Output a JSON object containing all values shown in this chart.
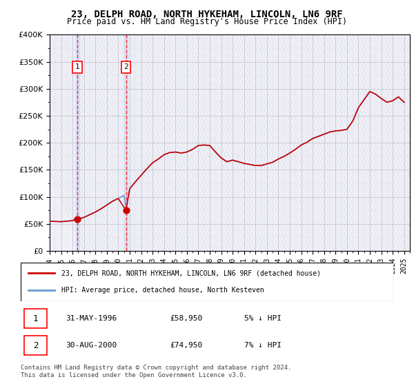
{
  "title": "23, DELPH ROAD, NORTH HYKEHAM, LINCOLN, LN6 9RF",
  "subtitle": "Price paid vs. HM Land Registry's House Price Index (HPI)",
  "ylabel_vals": [
    "£0",
    "£50K",
    "£100K",
    "£150K",
    "£200K",
    "£250K",
    "£300K",
    "£350K",
    "£400K"
  ],
  "ylim": [
    0,
    400000
  ],
  "xlim_start": 1994.0,
  "xlim_end": 2025.5,
  "legend_entry1": "23, DELPH ROAD, NORTH HYKEHAM, LINCOLN, LN6 9RF (detached house)",
  "legend_entry2": "HPI: Average price, detached house, North Kesteven",
  "table_rows": [
    {
      "num": "1",
      "date": "31-MAY-1996",
      "price": "£58,950",
      "hpi": "5% ↓ HPI"
    },
    {
      "num": "2",
      "date": "30-AUG-2000",
      "price": "£74,950",
      "hpi": "7% ↓ HPI"
    }
  ],
  "footnote": "Contains HM Land Registry data © Crown copyright and database right 2024.\nThis data is licensed under the Open Government Licence v3.0.",
  "sale1_x": 1996.42,
  "sale1_y": 58950,
  "sale2_x": 2000.67,
  "sale2_y": 74950,
  "hpi_color": "#6699cc",
  "price_color": "#cc0000",
  "bg_hatch_color": "#e8e8f0",
  "grid_color": "#cccccc",
  "hpi_data_x": [
    1994,
    1994.5,
    1995,
    1995.5,
    1996,
    1996.42,
    1996.5,
    1997,
    1997.5,
    1998,
    1998.5,
    1999,
    1999.5,
    2000,
    2000.5,
    2000.67,
    2001,
    2001.5,
    2002,
    2002.5,
    2003,
    2003.5,
    2004,
    2004.5,
    2005,
    2005.5,
    2006,
    2006.5,
    2007,
    2007.5,
    2008,
    2008.5,
    2009,
    2009.5,
    2010,
    2010.5,
    2011,
    2011.5,
    2012,
    2012.5,
    2013,
    2013.5,
    2014,
    2014.5,
    2015,
    2015.5,
    2016,
    2016.5,
    2017,
    2017.5,
    2018,
    2018.5,
    2019,
    2019.5,
    2020,
    2020.5,
    2021,
    2021.5,
    2022,
    2022.5,
    2023,
    2023.5,
    2024,
    2024.5,
    2025
  ],
  "hpi_data_y": [
    55000,
    54500,
    54000,
    55000,
    56000,
    61900,
    58000,
    62000,
    67000,
    72000,
    78000,
    85000,
    92000,
    97000,
    103000,
    80400,
    115000,
    128000,
    140000,
    152000,
    163000,
    170000,
    178000,
    182000,
    183000,
    181000,
    183000,
    188000,
    195000,
    196000,
    195000,
    183000,
    172000,
    165000,
    168000,
    165000,
    162000,
    160000,
    158000,
    158000,
    161000,
    164000,
    170000,
    175000,
    181000,
    188000,
    196000,
    201000,
    208000,
    212000,
    216000,
    220000,
    222000,
    223000,
    225000,
    240000,
    265000,
    280000,
    295000,
    290000,
    282000,
    275000,
    278000,
    285000,
    275000
  ],
  "price_data_x": [
    1994,
    1994.5,
    1995,
    1995.5,
    1996,
    1996.42,
    1997,
    1997.5,
    1998,
    1998.5,
    1999,
    1999.5,
    2000,
    2000.67,
    2001,
    2001.5,
    2002,
    2002.5,
    2003,
    2003.5,
    2004,
    2004.5,
    2005,
    2005.5,
    2006,
    2006.5,
    2007,
    2007.5,
    2008,
    2008.5,
    2009,
    2009.5,
    2010,
    2010.5,
    2011,
    2011.5,
    2012,
    2012.5,
    2013,
    2013.5,
    2014,
    2014.5,
    2015,
    2015.5,
    2016,
    2016.5,
    2017,
    2017.5,
    2018,
    2018.5,
    2019,
    2019.5,
    2020,
    2020.5,
    2021,
    2021.5,
    2022,
    2022.5,
    2023,
    2023.5,
    2024,
    2024.5,
    2025
  ],
  "price_data_y": [
    55000,
    54500,
    54000,
    55000,
    56000,
    58950,
    62000,
    67000,
    72000,
    78000,
    85000,
    92000,
    97000,
    74950,
    115000,
    128000,
    140000,
    152000,
    163000,
    170000,
    178000,
    182000,
    183000,
    181000,
    183000,
    188000,
    195000,
    196000,
    195000,
    183000,
    172000,
    165000,
    168000,
    165000,
    162000,
    160000,
    158000,
    158000,
    161000,
    164000,
    170000,
    175000,
    181000,
    188000,
    196000,
    201000,
    208000,
    212000,
    216000,
    220000,
    222000,
    223000,
    225000,
    240000,
    265000,
    280000,
    295000,
    290000,
    282000,
    275000,
    278000,
    285000,
    275000
  ]
}
